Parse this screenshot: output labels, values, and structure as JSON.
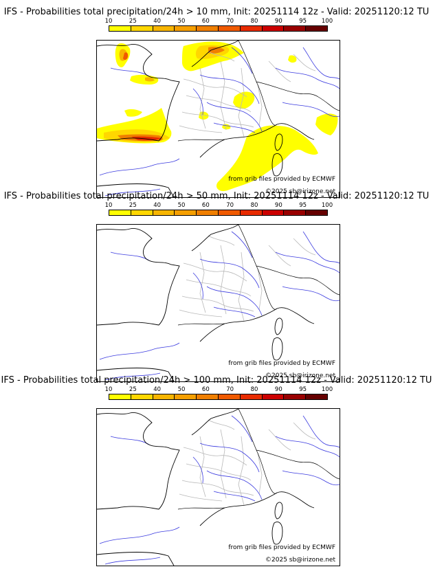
{
  "colorbar": {
    "ticks": [
      "10",
      "25",
      "40",
      "50",
      "60",
      "70",
      "80",
      "90",
      "95",
      "100"
    ],
    "colors": [
      "#ffff00",
      "#ffd700",
      "#f7b500",
      "#f59f00",
      "#f07f00",
      "#f05a00",
      "#e82b00",
      "#cc0000",
      "#990000",
      "#660000"
    ]
  },
  "panels": [
    {
      "title": "IFS - Probabilities total precipitation/24h > 10 mm, Init: 20251114 12z - Valid: 20251120:12 TU",
      "source": "from grib files provided by ECMWF",
      "copyright": "©2025 sb@irizone.net",
      "has_precip": true
    },
    {
      "title": "IFS - Probabilities total precipitation/24h > 50 mm, Init: 20251114 12z - Valid: 20251120:12 TU",
      "source": "from grib files provided by ECMWF",
      "copyright": "©2025 sb@irizone.net",
      "has_precip": false
    },
    {
      "title": "IFS - Probabilities total precipitation/24h > 100 mm, Init: 20251114 12z - Valid: 20251120:12 TU",
      "source": "from grib files provided by ECMWF",
      "copyright": "©2025 sb@irizone.net",
      "has_precip": false
    }
  ]
}
